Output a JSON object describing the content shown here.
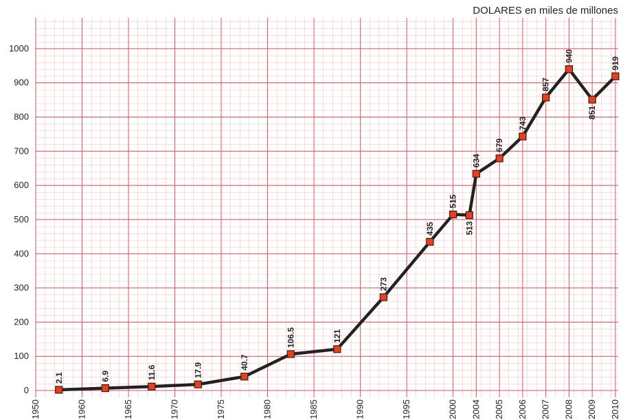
{
  "chart_data": {
    "type": "line",
    "title": "DOLARES en miles de millones",
    "x": [
      0.5,
      1.5,
      2.5,
      3.5,
      4.5,
      5.5,
      6.5,
      7.5,
      8.5,
      9,
      9.35,
      9.5,
      10,
      10.5,
      11,
      11.5,
      12,
      12.5
    ],
    "series": [
      {
        "color": "#222222",
        "marker_color": "#e8401c",
        "values": [
          2.1,
          6.9,
          11.6,
          17.9,
          40.7,
          106.5,
          121,
          273,
          435,
          515,
          513,
          634,
          679,
          743,
          857,
          940,
          851,
          919
        ]
      }
    ],
    "xlim": [
      0,
      12.56
    ],
    "xticks": [
      {
        "value": 0,
        "label": "1950"
      },
      {
        "value": 1,
        "label": "1960"
      },
      {
        "value": 2,
        "label": "1965"
      },
      {
        "value": 3,
        "label": "1970"
      },
      {
        "value": 4,
        "label": "1975"
      },
      {
        "value": 5,
        "label": "1980"
      },
      {
        "value": 6,
        "label": "1985"
      },
      {
        "value": 7,
        "label": "1990"
      },
      {
        "value": 8,
        "label": "1995"
      },
      {
        "value": 9,
        "label": "2000"
      },
      {
        "value": 9.5,
        "label": "2004"
      },
      {
        "value": 10,
        "label": "2005"
      },
      {
        "value": 10.5,
        "label": "2006"
      },
      {
        "value": 11,
        "label": "2007"
      },
      {
        "value": 11.5,
        "label": "2008"
      },
      {
        "value": 12,
        "label": "2009"
      },
      {
        "value": 12.5,
        "label": "2010"
      }
    ],
    "ylim": [
      -20,
      1090
    ],
    "yticks": [
      0,
      100,
      200,
      300,
      400,
      500,
      600,
      700,
      800,
      900,
      1000
    ],
    "grid": true
  }
}
